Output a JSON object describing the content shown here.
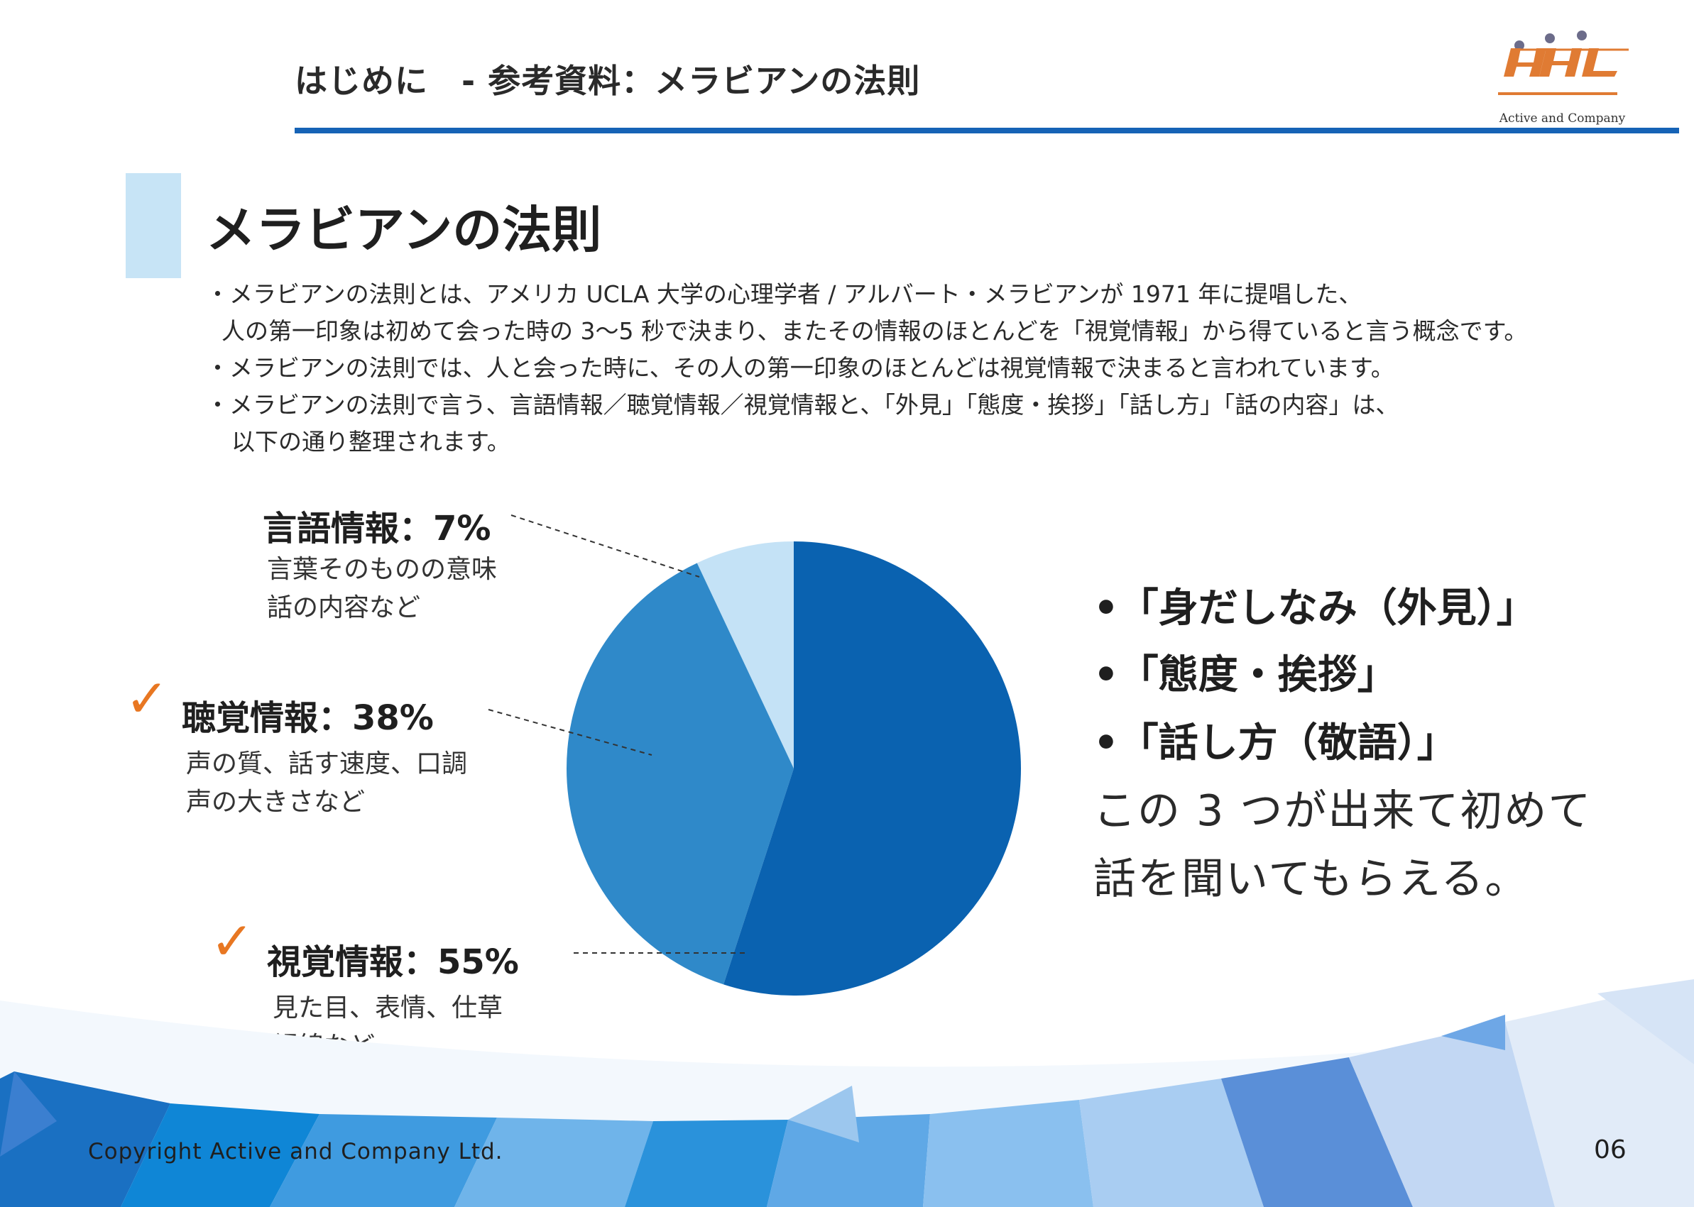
{
  "header": {
    "title": "はじめに　- 参考資料：メラビアンの法則",
    "logo_text": "Active and Company"
  },
  "section": {
    "title": "メラビアンの法則"
  },
  "intro": [
    "・メラビアンの法則とは、アメリカ UCLA 大学の心理学者 / アルバート・メラビアンが 1971 年に提唱した、",
    "人の第一印象は初めて会った時の 3〜5 秒で決まり、またその情報のほとんどを「視覚情報」から得ていると言う概念です。",
    "・メラビアンの法則では、人と会った時に、その人の第一印象のほとんどは視覚情報で決まると言われています。",
    "・メラビアンの法則で言う、言語情報／聴覚情報／視覚情報と、「外見」「態度・挨拶」「話し方」「話の内容」は、",
    "以下の通り整理されます。"
  ],
  "labels": {
    "verbal": {
      "head": "言語情報：7%",
      "lines": [
        "言葉そのものの意味",
        "話の内容など"
      ]
    },
    "vocal": {
      "head": "聴覚情報：38%",
      "lines": [
        "声の質、話す速度、口調",
        "声の大きさなど"
      ]
    },
    "visual": {
      "head": "視覚情報：55%",
      "lines": [
        "見た目、表情、仕草",
        "視線など"
      ]
    }
  },
  "check_icon": "✓",
  "points": [
    "•「身だしなみ（外見）」",
    "•「態度・挨拶」",
    "•「話し方（敬語）」"
  ],
  "conclusion": [
    "この 3 つが出来て初めて",
    "話を聞いてもらえる。"
  ],
  "chart_data": {
    "type": "pie",
    "categories": [
      "言語情報",
      "聴覚情報",
      "視覚情報"
    ],
    "values": [
      7,
      38,
      55
    ],
    "colors": [
      "#c4e2f6",
      "#2f89c9",
      "#0a62b0"
    ]
  },
  "footer": {
    "copyright": "Copyright Active and Company Ltd.",
    "page": "06"
  },
  "colors": {
    "accent_blue": "#1663b6",
    "check_orange": "#e87722",
    "section_bar": "#c7e4f6"
  }
}
